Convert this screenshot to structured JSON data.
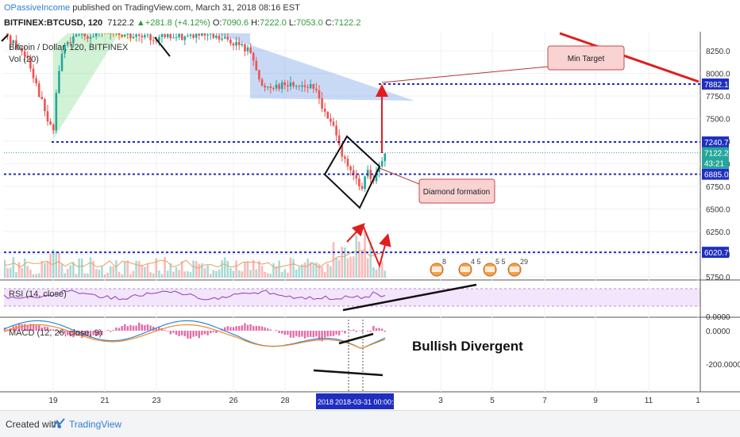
{
  "header": {
    "user": "OPassiveIncome",
    "published_text": " published on TradingView.com, March 31, 2018 08:16 EST",
    "symbol": "BITFINEX:BTCUSD, 120",
    "last": "7122.2",
    "change": "+281.8 (+4.12%)",
    "open_label": "O:",
    "open": "7090.6",
    "high_label": "H:",
    "high": "7222.0",
    "low_label": "L:",
    "low": "7053.0",
    "close_label": "C:",
    "close": "7122.2"
  },
  "footer": {
    "created_with": "Created with",
    "brand": "TradingView"
  },
  "chart_data": [
    {
      "type": "candlestick",
      "title": "Bitcoin / Dollar, 120, BITFINEX",
      "volume_label": "Vol (20)",
      "ylim": [
        5680,
        8400
      ],
      "y_ticks": [
        5750,
        6000,
        6250,
        6500,
        6750,
        7000,
        7250,
        7500,
        7750,
        8000,
        8250
      ],
      "x_ticks": [
        "19",
        "21",
        "23",
        "26",
        "28",
        "3",
        "5",
        "7",
        "9",
        "11",
        "1"
      ],
      "x_cursor_label": "2018-03-31 00:00:00",
      "x_cursor_left_stub": "2018",
      "price_labels": [
        {
          "value": 7882.1,
          "text": "7882.1",
          "color": "#1f2ec0"
        },
        {
          "value": 7240.7,
          "text": "7240.7",
          "color": "#1f2ec0"
        },
        {
          "value": 7122.2,
          "text": "7122.2",
          "color": "#26a69a"
        },
        {
          "value": 7010,
          "text": "43:21",
          "color": "#26a69a"
        },
        {
          "value": 6885.0,
          "text": "6885.0",
          "color": "#1f2ec0"
        },
        {
          "value": 6020.7,
          "text": "6020.7",
          "color": "#1f2ec0"
        }
      ],
      "horizontal_levels": [
        7882.1,
        7240.7,
        6885.0,
        6020.7
      ],
      "annotations": [
        "Min Target",
        "Diamond formation"
      ],
      "event_badges": [
        "8",
        "4 5",
        "5 5",
        "29"
      ]
    },
    {
      "type": "line",
      "title": "RSI (14, close)",
      "ylim": [
        0,
        100
      ],
      "y_ticks": [
        0
      ],
      "y_tick_labels": [
        "0.0000"
      ]
    },
    {
      "type": "line",
      "title": "MACD (12, 26, close, 9)",
      "y_ticks": [
        0,
        -200
      ],
      "y_tick_labels": [
        "0.0000",
        "-200.0000"
      ],
      "annotation": "Bullish Divergent"
    }
  ],
  "colors": {
    "up": "#26a69a",
    "down": "#ef5350",
    "level": "#1f2ec0",
    "trend": "#e11d1d",
    "triangle": "#6e9be8"
  }
}
